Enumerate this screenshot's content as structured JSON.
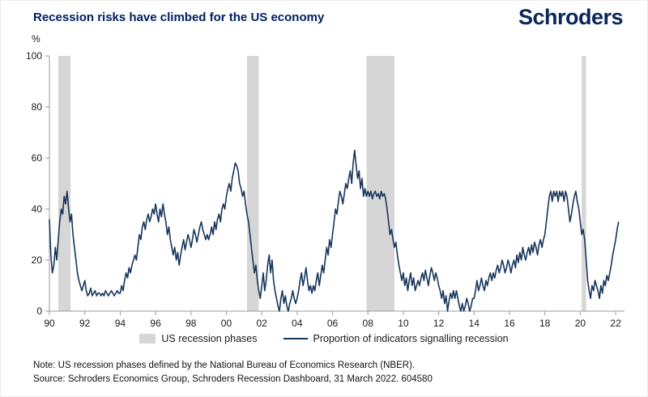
{
  "header": {
    "title": "Recession risks have climbed for the US economy",
    "logo": "Schroders"
  },
  "legend": {
    "recession_label": "US recession phases",
    "line_label": "Proportion of indicators signalling recession"
  },
  "footnotes": {
    "note": "Note: US recession phases defined by the National Bureau of Economics Research (NBER).",
    "source": "Source: Schroders Economics Group, Schroders Recession Dashboard, 31 March 2022. 604580"
  },
  "colors": {
    "navy": "#17365d",
    "title_navy": "#002060",
    "band_gray": "#d6d6d6",
    "axis_gray": "#9b9b9b",
    "tick_text": "#1a1a1a"
  },
  "chart_data": {
    "type": "line",
    "title": "Recession risks have climbed for the US economy",
    "xlabel": "",
    "ylabel": "%",
    "ylim": [
      0,
      100
    ],
    "y_ticks": [
      0,
      20,
      40,
      60,
      80,
      100
    ],
    "x_ticks": [
      "90",
      "92",
      "94",
      "96",
      "98",
      "00",
      "02",
      "04",
      "06",
      "08",
      "10",
      "12",
      "14",
      "16",
      "18",
      "20",
      "22"
    ],
    "x_tick_years": [
      1990,
      1992,
      1994,
      1996,
      1998,
      2000,
      2002,
      2004,
      2006,
      2008,
      2010,
      2012,
      2014,
      2016,
      2018,
      2020,
      2022
    ],
    "x_range": [
      1990,
      2022.5
    ],
    "start_year": 1990,
    "points_per_year": 12,
    "grid": false,
    "legend_position": "bottom",
    "recession_bands": [
      [
        1990.5,
        1991.2
      ],
      [
        2001.17,
        2001.83
      ],
      [
        2007.92,
        2009.5
      ],
      [
        2020.08,
        2020.33
      ]
    ],
    "series": [
      {
        "name": "Proportion of indicators signalling recession",
        "values": [
          36,
          22,
          15,
          18,
          25,
          20,
          28,
          35,
          40,
          38,
          45,
          42,
          47,
          40,
          35,
          38,
          30,
          25,
          20,
          15,
          12,
          10,
          8,
          10,
          12,
          8,
          6,
          7,
          9,
          6,
          7,
          8,
          6,
          7,
          7,
          6,
          7,
          6,
          8,
          7,
          6,
          7,
          8,
          7,
          6,
          7,
          8,
          7,
          7,
          10,
          8,
          12,
          15,
          13,
          17,
          15,
          18,
          20,
          22,
          20,
          25,
          30,
          28,
          33,
          35,
          32,
          36,
          38,
          35,
          37,
          40,
          38,
          42,
          38,
          35,
          40,
          37,
          42,
          38,
          35,
          30,
          33,
          28,
          25,
          22,
          25,
          20,
          23,
          18,
          22,
          25,
          28,
          24,
          27,
          30,
          28,
          25,
          28,
          32,
          30,
          27,
          30,
          33,
          35,
          32,
          30,
          28,
          30,
          28,
          30,
          33,
          30,
          35,
          32,
          36,
          38,
          35,
          40,
          42,
          40,
          45,
          48,
          50,
          47,
          52,
          55,
          58,
          57,
          55,
          50,
          48,
          45,
          47,
          42,
          38,
          35,
          30,
          25,
          20,
          15,
          18,
          12,
          8,
          5,
          10,
          15,
          8,
          12,
          18,
          22,
          15,
          20,
          12,
          8,
          5,
          2,
          0,
          5,
          8,
          3,
          6,
          2,
          0,
          3,
          5,
          8,
          5,
          3,
          5,
          8,
          12,
          15,
          10,
          13,
          17,
          12,
          8,
          10,
          7,
          10,
          8,
          12,
          15,
          10,
          14,
          18,
          15,
          20,
          25,
          22,
          28,
          25,
          30,
          35,
          40,
          38,
          43,
          47,
          45,
          42,
          46,
          50,
          48,
          52,
          55,
          50,
          58,
          63,
          57,
          52,
          55,
          48,
          52,
          45,
          48,
          45,
          47,
          45,
          47,
          44,
          46,
          47,
          45,
          46,
          44,
          47,
          45,
          46,
          44,
          40,
          35,
          30,
          32,
          28,
          25,
          27,
          22,
          18,
          15,
          12,
          15,
          10,
          13,
          8,
          12,
          15,
          10,
          13,
          8,
          10,
          12,
          10,
          13,
          15,
          12,
          16,
          13,
          10,
          14,
          17,
          15,
          12,
          15,
          13,
          10,
          8,
          5,
          8,
          3,
          6,
          0,
          4,
          7,
          5,
          8,
          5,
          8,
          5,
          2,
          0,
          3,
          0,
          2,
          5,
          3,
          0,
          2,
          5,
          5,
          8,
          12,
          8,
          10,
          13,
          10,
          8,
          12,
          10,
          13,
          15,
          12,
          15,
          13,
          16,
          18,
          15,
          17,
          20,
          18,
          15,
          17,
          20,
          18,
          15,
          18,
          20,
          17,
          22,
          19,
          23,
          20,
          25,
          22,
          20,
          23,
          25,
          22,
          26,
          23,
          27,
          25,
          22,
          26,
          28,
          25,
          28,
          30,
          35,
          40,
          45,
          47,
          43,
          47,
          45,
          47,
          43,
          47,
          45,
          47,
          43,
          47,
          45,
          40,
          35,
          38,
          42,
          45,
          47,
          43,
          40,
          35,
          30,
          32,
          28,
          20,
          12,
          8,
          5,
          10,
          8,
          12,
          10,
          8,
          5,
          10,
          7,
          12,
          10,
          14,
          12,
          15,
          18,
          22,
          25,
          28,
          32,
          35
        ]
      }
    ]
  }
}
